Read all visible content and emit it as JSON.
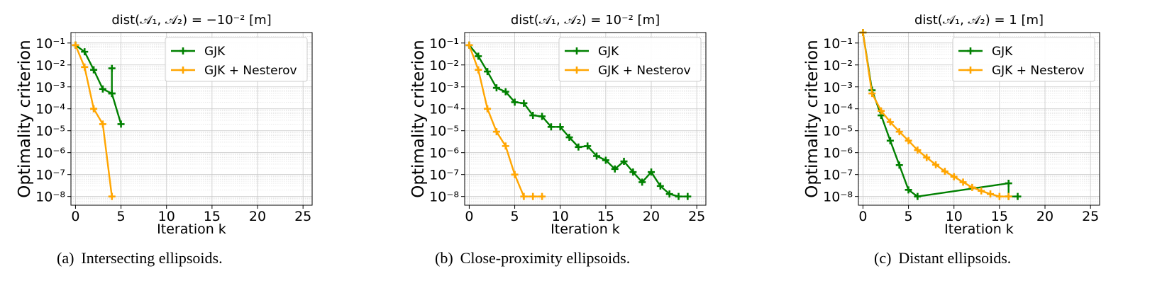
{
  "chart_data": [
    {
      "type": "line",
      "title": "dist(𝒜₁, 𝒜₂) = −10⁻² [m]",
      "caption_label": "(a)",
      "caption": "Intersecting ellipsoids.",
      "xlabel": "Iteration k",
      "ylabel": "Optimality criterion",
      "y_scale": "log",
      "xlim": [
        -0.5,
        26
      ],
      "ylim": [
        4e-09,
        0.3
      ],
      "x_ticks": [
        "0",
        "5",
        "10",
        "15",
        "20",
        "25"
      ],
      "y_ticks": [
        "10⁻¹",
        "10⁻²",
        "10⁻³",
        "10⁻⁴",
        "10⁻⁵",
        "10⁻⁶",
        "10⁻⁷",
        "10⁻⁸"
      ],
      "grid": true,
      "legend_position": "top-right",
      "series": [
        {
          "name": "GJK",
          "color": "#008000",
          "x": [
            0,
            1,
            2,
            3,
            4,
            4,
            4,
            5
          ],
          "y": [
            0.08,
            0.04,
            0.006,
            0.0008,
            0.0005,
            0.007,
            0.0005,
            2e-05
          ]
        },
        {
          "name": "GJK + Nesterov",
          "color": "#ffa500",
          "x": [
            0,
            1,
            2,
            3,
            4
          ],
          "y": [
            0.08,
            0.008,
            0.0001,
            2e-05,
            1e-08
          ]
        }
      ]
    },
    {
      "type": "line",
      "title": "dist(𝒜₁, 𝒜₂) = 10⁻² [m]",
      "caption_label": "(b)",
      "caption": "Close-proximity ellipsoids.",
      "xlabel": "Iteration k",
      "ylabel": "Optimality criterion",
      "y_scale": "log",
      "xlim": [
        -0.5,
        26
      ],
      "ylim": [
        4e-09,
        0.3
      ],
      "x_ticks": [
        "0",
        "5",
        "10",
        "15",
        "20",
        "25"
      ],
      "y_ticks": [
        "10⁻¹",
        "10⁻²",
        "10⁻³",
        "10⁻⁴",
        "10⁻⁵",
        "10⁻⁶",
        "10⁻⁷",
        "10⁻⁸"
      ],
      "grid": true,
      "legend_position": "top-right",
      "series": [
        {
          "name": "GJK",
          "color": "#008000",
          "x": [
            0,
            1,
            2,
            3,
            4,
            5,
            6,
            7,
            8,
            9,
            10,
            11,
            12,
            13,
            14,
            15,
            16,
            17,
            18,
            19,
            20,
            21,
            22,
            23,
            24
          ],
          "y": [
            0.08,
            0.025,
            0.005,
            0.0009,
            0.0006,
            0.0002,
            0.00018,
            5e-05,
            4.5e-05,
            1.5e-05,
            1.5e-05,
            5e-06,
            1.8e-06,
            2e-06,
            7e-07,
            4.5e-07,
            1.8e-07,
            4e-07,
            1.3e-07,
            4.5e-08,
            1.3e-07,
            3e-08,
            1.3e-08,
            1e-08,
            1e-08
          ]
        },
        {
          "name": "GJK + Nesterov",
          "color": "#ffa500",
          "x": [
            0,
            1,
            2,
            3,
            4,
            5,
            6,
            7,
            8
          ],
          "y": [
            0.08,
            0.006,
            0.0001,
            9e-06,
            2e-06,
            1e-07,
            1e-08,
            1e-08,
            1e-08
          ]
        }
      ]
    },
    {
      "type": "line",
      "title": "dist(𝒜₁, 𝒜₂) = 1 [m]",
      "caption_label": "(c)",
      "caption": "Distant ellipsoids.",
      "xlabel": "Iteration k",
      "ylabel": "Optimality criterion",
      "y_scale": "log",
      "xlim": [
        -0.5,
        26
      ],
      "ylim": [
        4e-09,
        0.3
      ],
      "x_ticks": [
        "0",
        "5",
        "10",
        "15",
        "20",
        "25"
      ],
      "y_ticks": [
        "10⁻¹",
        "10⁻²",
        "10⁻³",
        "10⁻⁴",
        "10⁻⁵",
        "10⁻⁶",
        "10⁻⁷",
        "10⁻⁸"
      ],
      "grid": true,
      "legend_position": "top-right",
      "series": [
        {
          "name": "GJK",
          "color": "#008000",
          "x": [
            0,
            1,
            2,
            3,
            4,
            5,
            6,
            16,
            16,
            17
          ],
          "y": [
            0.3,
            0.0007,
            5e-05,
            3.5e-06,
            2.7e-07,
            2e-08,
            1e-08,
            4e-08,
            1e-08,
            1e-08
          ]
        },
        {
          "name": "GJK + Nesterov",
          "color": "#ffa500",
          "x": [
            0,
            1,
            2,
            3,
            4,
            5,
            6,
            7,
            8,
            9,
            10,
            11,
            12,
            13,
            14,
            15,
            16
          ],
          "y": [
            0.3,
            0.0005,
            8e-05,
            2.5e-05,
            9e-06,
            3.5e-06,
            1.3e-06,
            6e-07,
            2.8e-07,
            1.4e-07,
            8e-08,
            4.5e-08,
            2.6e-08,
            1.8e-08,
            1.3e-08,
            1e-08,
            1e-08
          ]
        }
      ]
    }
  ]
}
